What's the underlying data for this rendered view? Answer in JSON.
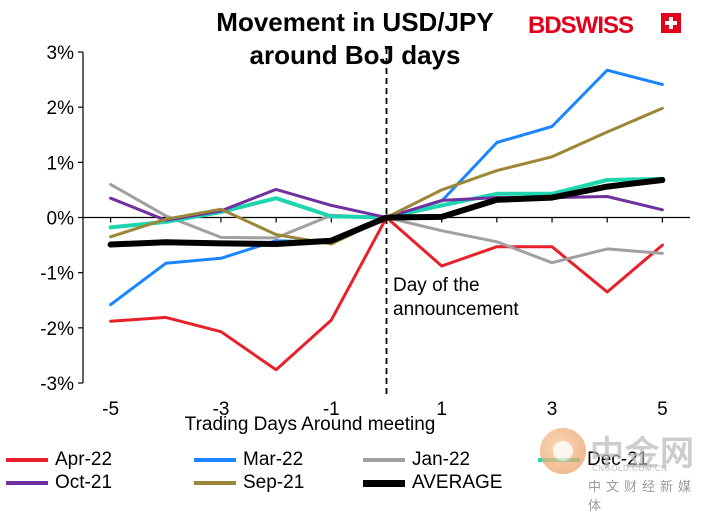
{
  "chart_data": {
    "type": "line",
    "title": "Movement in USD/JPY around BoJ days",
    "title_lines": [
      "Movement in USD/JPY",
      "around BoJ days"
    ],
    "xlabel": "Trading Days Around meeting",
    "ylabel": "",
    "x": [
      -5,
      -4,
      -3,
      -2,
      -1,
      0,
      1,
      2,
      3,
      4,
      5
    ],
    "x_tick_labels": [
      "-5",
      "-3",
      "-1",
      "1",
      "3",
      "5"
    ],
    "x_tick_values": [
      -5,
      -3,
      -1,
      1,
      3,
      5
    ],
    "ylim": [
      -3,
      3
    ],
    "y_tick_values": [
      3,
      2,
      1,
      0,
      -1,
      -2,
      -3
    ],
    "y_tick_labels": [
      "3%",
      "2%",
      "1%",
      "0%",
      "-1%",
      "-2%",
      "-3%"
    ],
    "grid": false,
    "legend_position": "bottom",
    "annotation": {
      "x": 0,
      "lines": [
        "Day of the",
        "announcement"
      ]
    },
    "series": [
      {
        "name": "Apr-22",
        "color": "#e8202a",
        "width": 3,
        "values": [
          -1.88,
          -1.81,
          -2.07,
          -2.76,
          -1.86,
          0.0,
          -0.88,
          -0.53,
          -0.53,
          -1.35,
          -0.5
        ]
      },
      {
        "name": "Mar-22",
        "color": "#1a85ff",
        "width": 3,
        "values": [
          -1.58,
          -0.83,
          -0.74,
          -0.42,
          -0.45,
          0.0,
          0.3,
          1.36,
          1.65,
          2.67,
          2.41
        ]
      },
      {
        "name": "Jan-22",
        "color": "#a0a0a0",
        "width": 3,
        "values": [
          0.6,
          0.03,
          -0.36,
          -0.37,
          0.04,
          0.0,
          -0.24,
          -0.44,
          -0.82,
          -0.57,
          -0.65
        ]
      },
      {
        "name": "Dec-21",
        "color": "#1dd6b0",
        "width": 4,
        "values": [
          -0.18,
          -0.08,
          0.1,
          0.35,
          0.02,
          0.0,
          0.22,
          0.43,
          0.43,
          0.68,
          0.7
        ]
      },
      {
        "name": "Oct-21",
        "color": "#7030a0",
        "width": 3,
        "values": [
          0.35,
          -0.05,
          0.12,
          0.51,
          0.22,
          0.0,
          0.31,
          0.36,
          0.36,
          0.38,
          0.14
        ]
      },
      {
        "name": "Sep-21",
        "color": "#9c8637",
        "width": 3,
        "values": [
          -0.35,
          -0.03,
          0.15,
          -0.31,
          -0.48,
          0.0,
          0.5,
          0.85,
          1.1,
          1.55,
          1.98
        ]
      },
      {
        "name": "AVERAGE",
        "color": "#000000",
        "width": 6,
        "values": [
          -0.49,
          -0.45,
          -0.47,
          -0.48,
          -0.42,
          0.0,
          0.01,
          0.32,
          0.36,
          0.56,
          0.68
        ]
      }
    ]
  },
  "brand": {
    "logo_text": "BDSWISS"
  },
  "watermark": {
    "cn": "中金网",
    "url": "CNGOLD.COM.CN",
    "sub": "中文财经新媒体"
  }
}
